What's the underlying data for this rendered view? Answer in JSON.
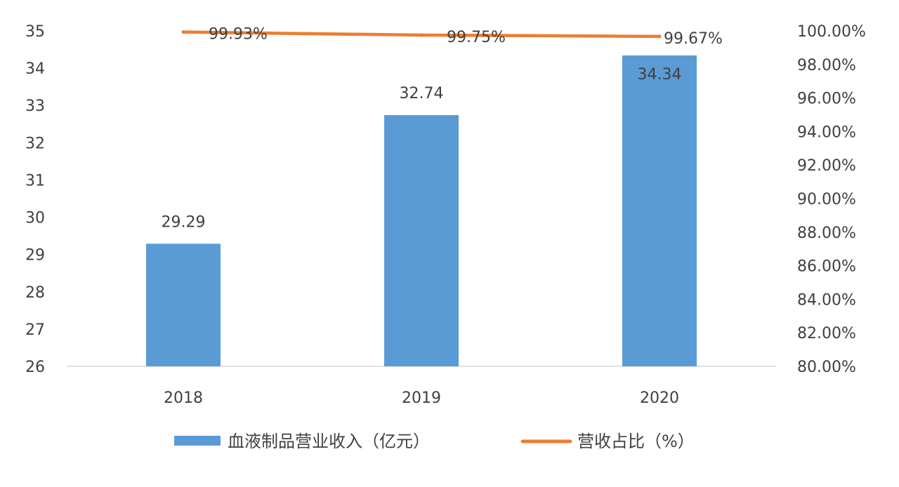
{
  "chart_data": {
    "type": "bar",
    "categories": [
      "2018",
      "2019",
      "2020"
    ],
    "series": [
      {
        "name": "血液制品营业收入（亿元）",
        "type": "bar",
        "axis": "left",
        "values": [
          29.29,
          32.74,
          34.34
        ],
        "labels": [
          "29.29",
          "32.74",
          "34.34"
        ],
        "color": "#5b9bd5"
      },
      {
        "name": "营收占比（%）",
        "type": "line",
        "axis": "right",
        "values": [
          99.93,
          99.75,
          99.67
        ],
        "labels": [
          "99.93%",
          "99.75%",
          "99.67%"
        ],
        "color": "#ed7d31"
      }
    ],
    "y_left": {
      "range": [
        26,
        35
      ],
      "ticks": [
        "26",
        "27",
        "28",
        "29",
        "30",
        "31",
        "32",
        "33",
        "34",
        "35"
      ]
    },
    "y_right": {
      "range": [
        80,
        100
      ],
      "ticks": [
        "80.00%",
        "82.00%",
        "84.00%",
        "86.00%",
        "88.00%",
        "90.00%",
        "92.00%",
        "94.00%",
        "96.00%",
        "98.00%",
        "100.00%"
      ]
    },
    "grid": false,
    "legend_position": "bottom"
  }
}
